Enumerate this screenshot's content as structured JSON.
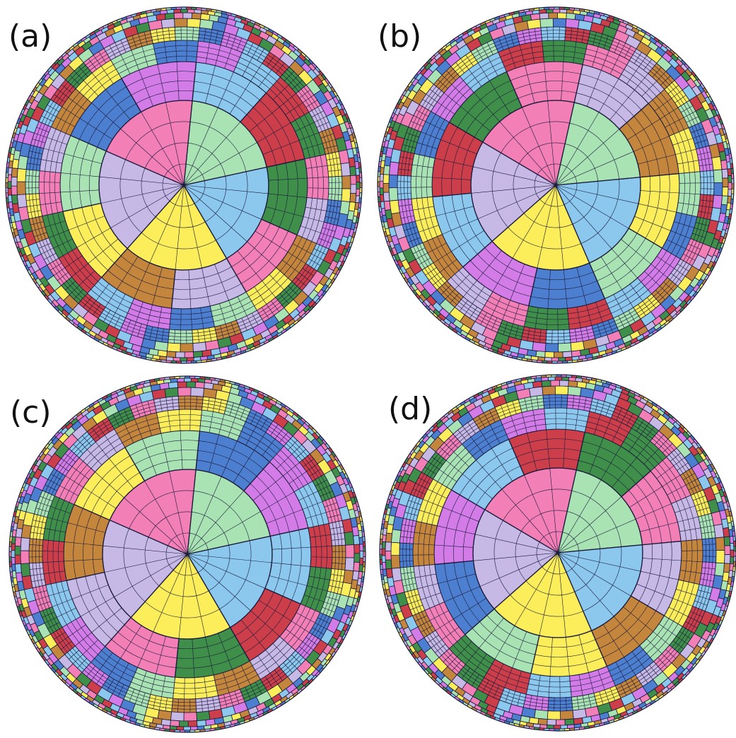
{
  "figure": {
    "panels": [
      {
        "label": "(a)",
        "rotation_deg": 0
      },
      {
        "label": "(b)",
        "rotation_deg": 0
      },
      {
        "label": "(c)",
        "rotation_deg": 0
      },
      {
        "label": "(d)",
        "rotation_deg": 0
      }
    ],
    "tiling": {
      "central_tiles": 5,
      "subdivisions_per_tile": 4
    },
    "palette": {
      "green_light": "#a9e3b3",
      "blue_light": "#8cc8ee",
      "yellow": "#fbee5a",
      "lavender": "#c6b9e6",
      "pink": "#f27fb6",
      "red": "#cc3f4a",
      "blue": "#4d7fd0",
      "brown": "#c4853c",
      "green_dark": "#3f8f4a",
      "violet": "#d37ce8",
      "line": "#1a1a3a"
    },
    "color_order": {
      "panel_a": [
        "green_light",
        "blue_light",
        "yellow",
        "lavender",
        "pink"
      ],
      "panel_b": [
        "green_light",
        "blue_light",
        "yellow",
        "lavender",
        "pink"
      ],
      "panel_c": [
        "green_light",
        "blue_light",
        "yellow",
        "lavender",
        "pink"
      ],
      "panel_d": [
        "green_light",
        "blue_light",
        "yellow",
        "lavender",
        "pink"
      ]
    },
    "ring_colors": [
      "red",
      "blue",
      "brown",
      "green_dark",
      "violet",
      "yellow",
      "pink",
      "blue_light",
      "green_light",
      "lavender"
    ]
  }
}
